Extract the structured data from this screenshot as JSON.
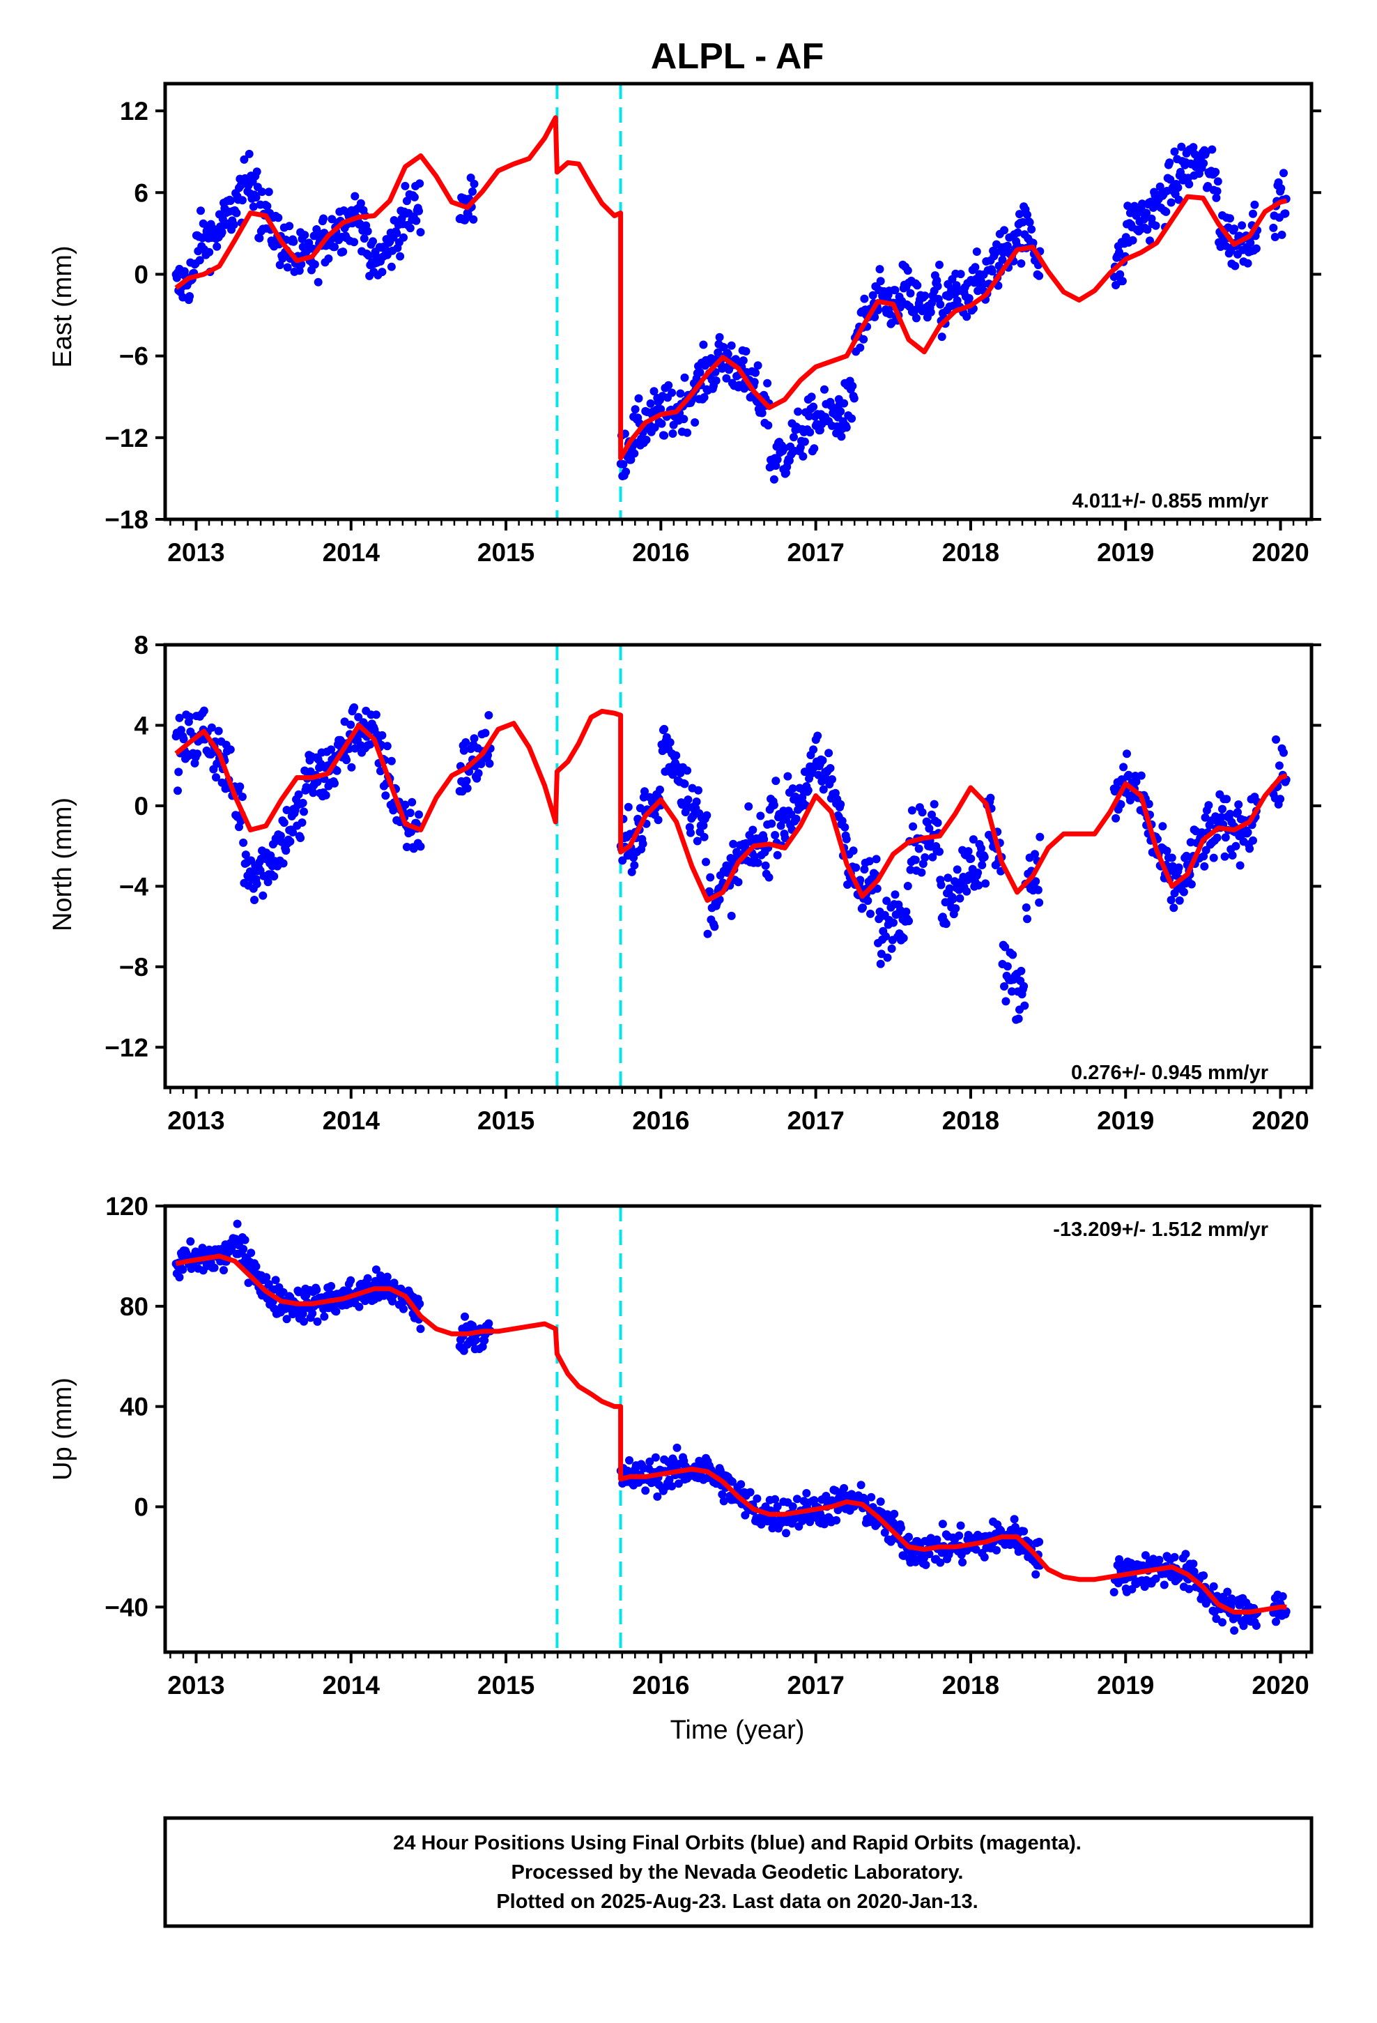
{
  "title": "ALPL - AF",
  "colors": {
    "points": "#0000ff",
    "model": "#ff0000",
    "offsets": "#00e5ee",
    "frame": "#000000"
  },
  "chart_data": [
    {
      "type": "scatter",
      "component": "East",
      "ylabel": "East (mm)",
      "xlim": [
        2012.8,
        2020.2
      ],
      "ylim": [
        -18,
        14
      ],
      "yticks": [
        12,
        6,
        0,
        -6,
        -12,
        -18
      ],
      "xticks": [
        2013,
        2014,
        2015,
        2016,
        2017,
        2018,
        2019,
        2020
      ],
      "rate": "4.011+/- 0.855 mm/yr",
      "offsets": [
        2015.33,
        2015.74
      ],
      "series": [
        {
          "kind": "model",
          "x": [
            2012.87,
            2012.95,
            2013.05,
            2013.15,
            2013.25,
            2013.35,
            2013.45,
            2013.55,
            2013.65,
            2013.75,
            2013.85,
            2013.95,
            2014.05,
            2014.15,
            2014.25,
            2014.35,
            2014.45,
            2014.55,
            2014.65,
            2014.75,
            2014.85,
            2014.95,
            2015.05,
            2015.15,
            2015.25,
            2015.32,
            2015.33,
            2015.4,
            2015.47,
            2015.55,
            2015.62,
            2015.7,
            2015.74,
            2015.74,
            2015.8,
            2015.9,
            2016.0,
            2016.1,
            2016.2,
            2016.3,
            2016.4,
            2016.5,
            2016.6,
            2016.7,
            2016.8,
            2016.9,
            2017.0,
            2017.1,
            2017.2,
            2017.3,
            2017.4,
            2017.5,
            2017.6,
            2017.7,
            2017.8,
            2017.9,
            2018.0,
            2018.1,
            2018.2,
            2018.3,
            2018.4,
            2018.5,
            2018.6,
            2018.7,
            2018.8,
            2018.9,
            2019.0,
            2019.1,
            2019.2,
            2019.3,
            2019.4,
            2019.5,
            2019.6,
            2019.7,
            2019.8,
            2019.9,
            2020.0,
            2020.04
          ],
          "y": [
            -1.0,
            -0.3,
            0.0,
            0.6,
            2.5,
            4.5,
            4.3,
            2.4,
            1.0,
            1.3,
            2.8,
            3.8,
            4.2,
            4.3,
            5.4,
            7.9,
            8.7,
            7.2,
            5.3,
            4.9,
            6.1,
            7.6,
            8.1,
            8.5,
            10.0,
            11.5,
            7.5,
            8.2,
            8.1,
            6.5,
            5.2,
            4.3,
            4.5,
            -13.5,
            -12.3,
            -10.9,
            -10.3,
            -10.1,
            -8.8,
            -7.3,
            -6.1,
            -6.9,
            -8.6,
            -9.8,
            -9.2,
            -7.8,
            -6.8,
            -6.4,
            -6.0,
            -3.9,
            -2.0,
            -2.2,
            -4.8,
            -5.7,
            -3.8,
            -2.7,
            -2.3,
            -1.5,
            0.2,
            1.8,
            2.0,
            0.2,
            -1.3,
            -1.9,
            -1.2,
            0.1,
            1.1,
            1.6,
            2.3,
            4.0,
            5.7,
            5.6,
            3.7,
            2.2,
            2.8,
            4.6,
            5.3,
            5.4
          ]
        }
      ]
    },
    {
      "type": "scatter",
      "component": "North",
      "ylabel": "North (mm)",
      "xlim": [
        2012.8,
        2020.2
      ],
      "ylim": [
        -14,
        8
      ],
      "yticks": [
        8,
        4,
        0,
        -4,
        -8,
        -12
      ],
      "xticks": [
        2013,
        2014,
        2015,
        2016,
        2017,
        2018,
        2019,
        2020
      ],
      "rate": "0.276+/- 0.945 mm/yr",
      "offsets": [
        2015.33,
        2015.74
      ],
      "series": [
        {
          "kind": "model",
          "x": [
            2012.87,
            2012.95,
            2013.05,
            2013.15,
            2013.25,
            2013.35,
            2013.45,
            2013.55,
            2013.65,
            2013.75,
            2013.85,
            2013.95,
            2014.05,
            2014.15,
            2014.25,
            2014.35,
            2014.45,
            2014.55,
            2014.65,
            2014.75,
            2014.85,
            2014.95,
            2015.05,
            2015.15,
            2015.25,
            2015.32,
            2015.33,
            2015.4,
            2015.47,
            2015.55,
            2015.62,
            2015.7,
            2015.74,
            2015.74,
            2015.8,
            2015.9,
            2016.0,
            2016.1,
            2016.2,
            2016.3,
            2016.4,
            2016.5,
            2016.6,
            2016.7,
            2016.8,
            2016.9,
            2017.0,
            2017.1,
            2017.2,
            2017.3,
            2017.4,
            2017.5,
            2017.6,
            2017.7,
            2017.8,
            2017.9,
            2018.0,
            2018.1,
            2018.2,
            2018.3,
            2018.4,
            2018.5,
            2018.6,
            2018.7,
            2018.8,
            2018.9,
            2019.0,
            2019.1,
            2019.2,
            2019.3,
            2019.4,
            2019.5,
            2019.6,
            2019.7,
            2019.8,
            2019.9,
            2020.0,
            2020.04
          ],
          "y": [
            2.6,
            3.1,
            3.7,
            2.6,
            0.5,
            -1.2,
            -1.0,
            0.3,
            1.4,
            1.4,
            1.6,
            2.8,
            4.0,
            3.3,
            1.2,
            -0.9,
            -1.2,
            0.4,
            1.5,
            1.9,
            2.6,
            3.8,
            4.1,
            2.9,
            1.0,
            -0.8,
            1.7,
            2.2,
            3.1,
            4.4,
            4.7,
            4.6,
            4.5,
            -2.3,
            -2.0,
            -0.5,
            0.3,
            -0.8,
            -3.0,
            -4.7,
            -4.3,
            -2.8,
            -2.0,
            -1.9,
            -2.1,
            -1.0,
            0.5,
            -0.3,
            -2.9,
            -4.5,
            -3.7,
            -2.4,
            -1.8,
            -1.6,
            -1.5,
            -0.4,
            0.9,
            0.1,
            -2.8,
            -4.3,
            -3.5,
            -2.1,
            -1.4,
            -1.4,
            -1.4,
            -0.3,
            1.1,
            0.5,
            -2.2,
            -4.0,
            -3.4,
            -1.7,
            -1.1,
            -1.2,
            -0.8,
            0.5,
            1.4,
            1.5
          ]
        }
      ]
    },
    {
      "type": "scatter",
      "component": "Up",
      "ylabel": "Up (mm)",
      "xlabel": "Time (year)",
      "xlim": [
        2012.8,
        2020.2
      ],
      "ylim": [
        -58,
        120
      ],
      "yticks": [
        120,
        80,
        40,
        0,
        -40
      ],
      "xticks": [
        2013,
        2014,
        2015,
        2016,
        2017,
        2018,
        2019,
        2020
      ],
      "rate": "-13.209+/- 1.512 mm/yr",
      "offsets": [
        2015.33,
        2015.74
      ],
      "series": [
        {
          "kind": "model",
          "x": [
            2012.87,
            2012.95,
            2013.05,
            2013.15,
            2013.25,
            2013.35,
            2013.45,
            2013.55,
            2013.65,
            2013.75,
            2013.85,
            2013.95,
            2014.05,
            2014.15,
            2014.25,
            2014.35,
            2014.45,
            2014.55,
            2014.65,
            2014.75,
            2014.85,
            2014.95,
            2015.05,
            2015.15,
            2015.25,
            2015.32,
            2015.33,
            2015.4,
            2015.47,
            2015.55,
            2015.62,
            2015.7,
            2015.74,
            2015.74,
            2015.8,
            2015.9,
            2016.0,
            2016.1,
            2016.2,
            2016.3,
            2016.4,
            2016.5,
            2016.6,
            2016.7,
            2016.8,
            2016.9,
            2017.0,
            2017.1,
            2017.2,
            2017.3,
            2017.4,
            2017.5,
            2017.6,
            2017.7,
            2017.8,
            2017.9,
            2018.0,
            2018.1,
            2018.2,
            2018.3,
            2018.4,
            2018.5,
            2018.6,
            2018.7,
            2018.8,
            2018.9,
            2019.0,
            2019.1,
            2019.2,
            2019.3,
            2019.4,
            2019.5,
            2019.6,
            2019.7,
            2019.8,
            2019.9,
            2020.0,
            2020.04
          ],
          "y": [
            97,
            98,
            99,
            100,
            98,
            92,
            86,
            82,
            81,
            81,
            82,
            83,
            85,
            87,
            87,
            84,
            76,
            71,
            69,
            69,
            70,
            70,
            71,
            72,
            73,
            71,
            61,
            53,
            48,
            45,
            42,
            40,
            40,
            11,
            12,
            12,
            13,
            14,
            15,
            14,
            10,
            4,
            -1,
            -3,
            -3,
            -2,
            -1,
            0,
            2,
            1,
            -4,
            -10,
            -16,
            -17,
            -16,
            -16,
            -15,
            -14,
            -12,
            -12,
            -18,
            -25,
            -28,
            -29,
            -29,
            -28,
            -27,
            -26,
            -25,
            -24,
            -27,
            -32,
            -39,
            -42,
            -42,
            -41,
            -40,
            -40
          ]
        }
      ]
    }
  ],
  "footer": {
    "line1": "24 Hour Positions Using Final Orbits (blue) and Rapid Orbits (magenta).",
    "line2": "Processed by the Nevada Geodetic Laboratory.",
    "line3": "Plotted on 2025-Aug-23. Last data on 2020-Jan-13."
  }
}
